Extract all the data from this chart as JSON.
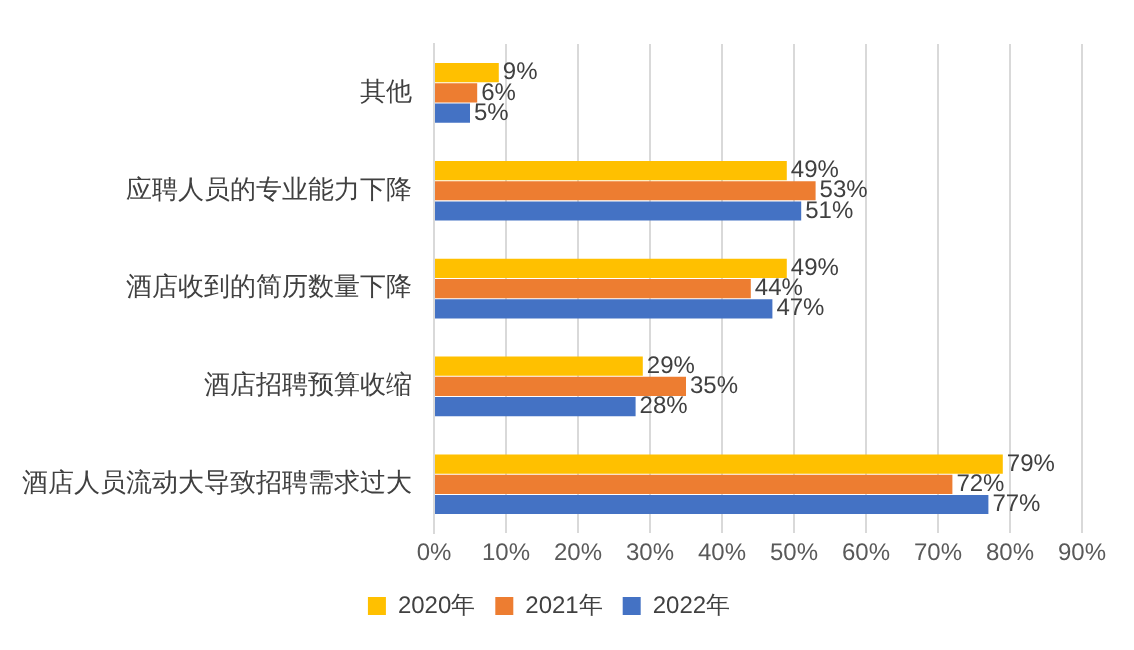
{
  "chart_data": {
    "type": "bar",
    "orientation": "horizontal",
    "categories": [
      "其他",
      "应聘人员的专业能力下降",
      "酒店收到的简历数量下降",
      "酒店招聘预算收缩",
      "酒店人员流动大导致招聘需求过大"
    ],
    "series": [
      {
        "name": "2020年",
        "color": "#ffc000",
        "values": [
          9,
          49,
          49,
          29,
          79
        ],
        "value_labels": [
          "9%",
          "49%",
          "49%",
          "29%",
          "79%"
        ]
      },
      {
        "name": "2021年",
        "color": "#ed7d31",
        "values": [
          6,
          53,
          44,
          35,
          72
        ],
        "value_labels": [
          "6%",
          "53%",
          "44%",
          "35%",
          "72%"
        ]
      },
      {
        "name": "2022年",
        "color": "#4472c4",
        "values": [
          5,
          51,
          47,
          28,
          77
        ],
        "value_labels": [
          "5%",
          "51%",
          "47%",
          "28%",
          "77%"
        ]
      }
    ],
    "xlim": [
      0,
      90
    ],
    "xticks": [
      {
        "value": 0,
        "label": "0%"
      },
      {
        "value": 10,
        "label": "10%"
      },
      {
        "value": 20,
        "label": "20%"
      },
      {
        "value": 30,
        "label": "30%"
      },
      {
        "value": 40,
        "label": "40%"
      },
      {
        "value": 50,
        "label": "50%"
      },
      {
        "value": 60,
        "label": "60%"
      },
      {
        "value": 70,
        "label": "70%"
      },
      {
        "value": 80,
        "label": "80%"
      },
      {
        "value": 90,
        "label": "90%"
      }
    ],
    "grid": "x",
    "legend": "bottom"
  }
}
